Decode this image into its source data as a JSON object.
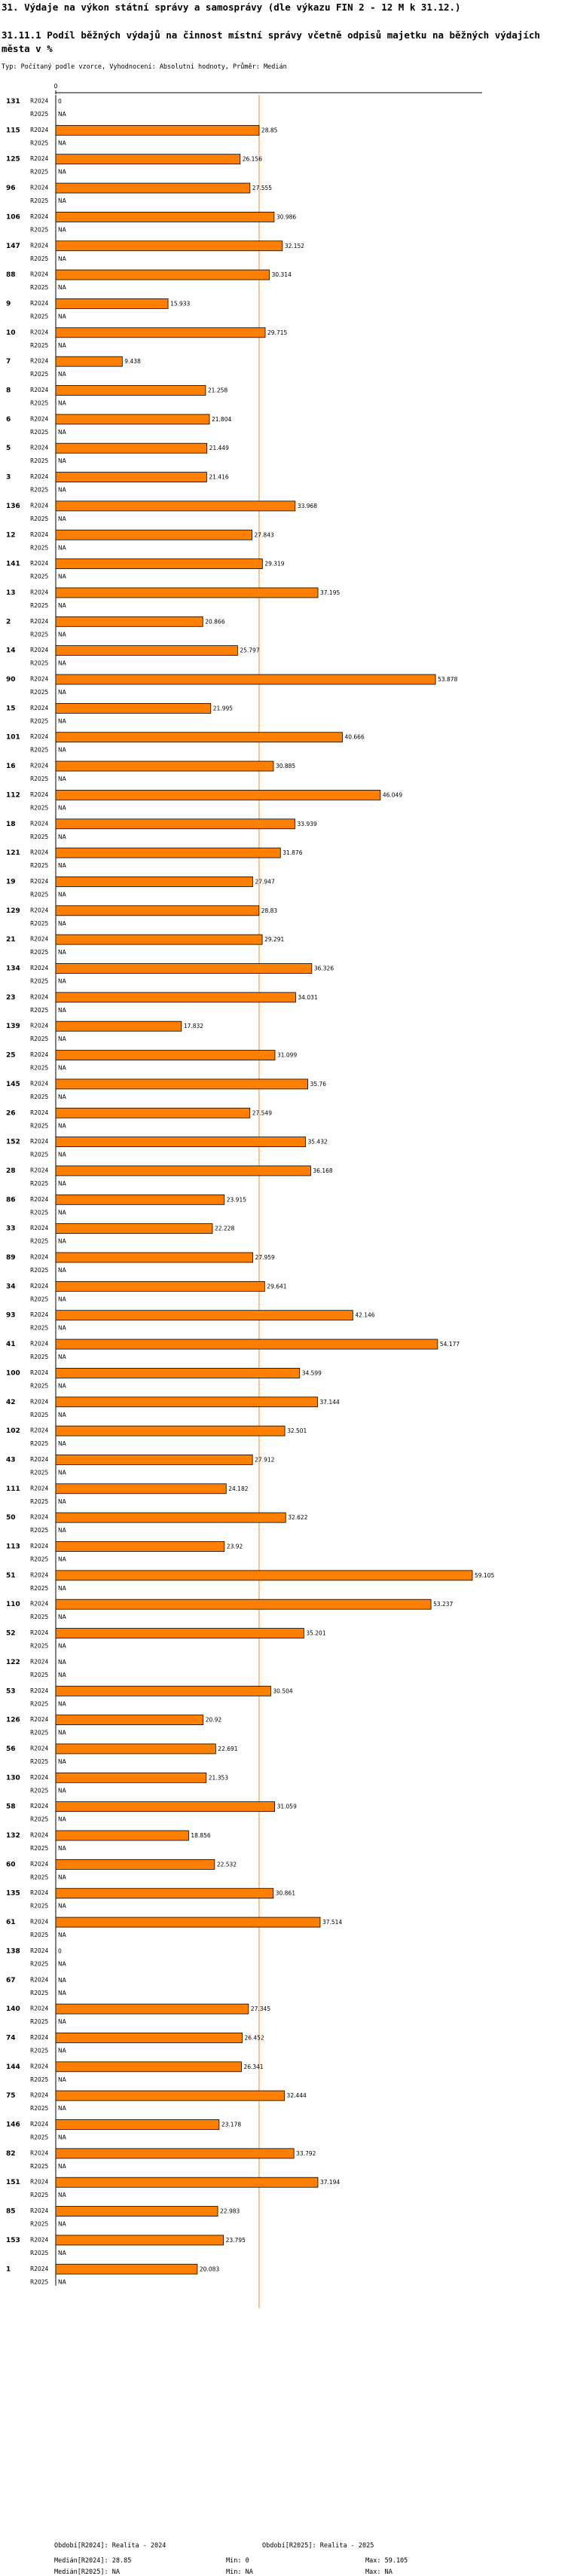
{
  "header": {
    "title": "31. Výdaje na výkon státní správy a samosprávy (dle výkazu FIN 2 - 12 M k 31.12.)",
    "subtitle": "31.11.1 Podíl běžných výdajů na činnost místní správy včetně odpisů majetku na běžných výdajích města v %",
    "settings": "Typ: Počítaný podle vzorce, Vyhodnocení: Absolutní hodnoty, Průměr: Medián"
  },
  "chart_data": {
    "type": "bar",
    "orientation": "horizontal",
    "series_names": [
      "R2024",
      "R2025"
    ],
    "axis_tick": "0",
    "xlim": [
      0,
      59.105
    ],
    "median_line": 28.85,
    "missing_label": "NA",
    "bar_color": "#ff8000",
    "median_color": "#ffb060",
    "rows": [
      {
        "id": "131",
        "r2024": 0,
        "l2024": "0"
      },
      {
        "id": "115",
        "r2024": 28.85,
        "l2024": "28.85"
      },
      {
        "id": "125",
        "r2024": 26.156,
        "l2024": "26.156"
      },
      {
        "id": "96",
        "r2024": 27.555,
        "l2024": "27.555"
      },
      {
        "id": "106",
        "r2024": 30.986,
        "l2024": "30.986"
      },
      {
        "id": "147",
        "r2024": 32.152,
        "l2024": "32.152"
      },
      {
        "id": "88",
        "r2024": 30.314,
        "l2024": "30.314"
      },
      {
        "id": "9",
        "r2024": 15.933,
        "l2024": "15.933"
      },
      {
        "id": "10",
        "r2024": 29.715,
        "l2024": "29.715"
      },
      {
        "id": "7",
        "r2024": 9.438,
        "l2024": "9.438"
      },
      {
        "id": "8",
        "r2024": 21.258,
        "l2024": "21.258"
      },
      {
        "id": "6",
        "r2024": 21.804,
        "l2024": "21.804"
      },
      {
        "id": "5",
        "r2024": 21.449,
        "l2024": "21.449"
      },
      {
        "id": "3",
        "r2024": 21.416,
        "l2024": "21.416"
      },
      {
        "id": "136",
        "r2024": 33.968,
        "l2024": "33.968"
      },
      {
        "id": "12",
        "r2024": 27.843,
        "l2024": "27.843"
      },
      {
        "id": "141",
        "r2024": 29.319,
        "l2024": "29.319"
      },
      {
        "id": "13",
        "r2024": 37.195,
        "l2024": "37.195"
      },
      {
        "id": "2",
        "r2024": 20.866,
        "l2024": "20.866"
      },
      {
        "id": "14",
        "r2024": 25.797,
        "l2024": "25.797"
      },
      {
        "id": "90",
        "r2024": 53.878,
        "l2024": "53.878"
      },
      {
        "id": "15",
        "r2024": 21.995,
        "l2024": "21.995"
      },
      {
        "id": "101",
        "r2024": 40.666,
        "l2024": "40.666"
      },
      {
        "id": "16",
        "r2024": 30.885,
        "l2024": "30.885"
      },
      {
        "id": "112",
        "r2024": 46.049,
        "l2024": "46.049"
      },
      {
        "id": "18",
        "r2024": 33.939,
        "l2024": "33.939"
      },
      {
        "id": "121",
        "r2024": 31.876,
        "l2024": "31.876"
      },
      {
        "id": "19",
        "r2024": 27.947,
        "l2024": "27.947"
      },
      {
        "id": "129",
        "r2024": 28.83,
        "l2024": "28.83"
      },
      {
        "id": "21",
        "r2024": 29.291,
        "l2024": "29.291"
      },
      {
        "id": "134",
        "r2024": 36.326,
        "l2024": "36.326"
      },
      {
        "id": "23",
        "r2024": 34.031,
        "l2024": "34.031"
      },
      {
        "id": "139",
        "r2024": 17.832,
        "l2024": "17.832"
      },
      {
        "id": "25",
        "r2024": 31.099,
        "l2024": "31.099"
      },
      {
        "id": "145",
        "r2024": 35.76,
        "l2024": "35.76"
      },
      {
        "id": "26",
        "r2024": 27.549,
        "l2024": "27.549"
      },
      {
        "id": "152",
        "r2024": 35.432,
        "l2024": "35.432"
      },
      {
        "id": "28",
        "r2024": 36.168,
        "l2024": "36.168"
      },
      {
        "id": "86",
        "r2024": 23.915,
        "l2024": "23.915"
      },
      {
        "id": "33",
        "r2024": 22.228,
        "l2024": "22.228"
      },
      {
        "id": "89",
        "r2024": 27.959,
        "l2024": "27.959"
      },
      {
        "id": "34",
        "r2024": 29.641,
        "l2024": "29.641"
      },
      {
        "id": "93",
        "r2024": 42.146,
        "l2024": "42.146"
      },
      {
        "id": "41",
        "r2024": 54.177,
        "l2024": "54.177"
      },
      {
        "id": "100",
        "r2024": 34.599,
        "l2024": "34.599"
      },
      {
        "id": "42",
        "r2024": 37.144,
        "l2024": "37.144"
      },
      {
        "id": "102",
        "r2024": 32.501,
        "l2024": "32.501"
      },
      {
        "id": "43",
        "r2024": 27.912,
        "l2024": "27.912"
      },
      {
        "id": "111",
        "r2024": 24.182,
        "l2024": "24.182"
      },
      {
        "id": "50",
        "r2024": 32.622,
        "l2024": "32.622"
      },
      {
        "id": "113",
        "r2024": 23.92,
        "l2024": "23.92"
      },
      {
        "id": "51",
        "r2024": 59.105,
        "l2024": "59.105"
      },
      {
        "id": "110",
        "r2024": 53.237,
        "l2024": "53.237"
      },
      {
        "id": "52",
        "r2024": 35.201,
        "l2024": "35.201"
      },
      {
        "id": "122",
        "r2024": null,
        "l2024": "NA"
      },
      {
        "id": "53",
        "r2024": 30.504,
        "l2024": "30.504"
      },
      {
        "id": "126",
        "r2024": 20.92,
        "l2024": "20.92"
      },
      {
        "id": "56",
        "r2024": 22.691,
        "l2024": "22.691"
      },
      {
        "id": "130",
        "r2024": 21.353,
        "l2024": "21.353"
      },
      {
        "id": "58",
        "r2024": 31.059,
        "l2024": "31.059"
      },
      {
        "id": "132",
        "r2024": 18.856,
        "l2024": "18.856"
      },
      {
        "id": "60",
        "r2024": 22.532,
        "l2024": "22.532"
      },
      {
        "id": "135",
        "r2024": 30.861,
        "l2024": "30.861"
      },
      {
        "id": "61",
        "r2024": 37.514,
        "l2024": "37.514"
      },
      {
        "id": "138",
        "r2024": 0,
        "l2024": "0"
      },
      {
        "id": "67",
        "r2024": null,
        "l2024": "NA"
      },
      {
        "id": "140",
        "r2024": 27.345,
        "l2024": "27.345"
      },
      {
        "id": "74",
        "r2024": 26.452,
        "l2024": "26.452"
      },
      {
        "id": "144",
        "r2024": 26.341,
        "l2024": "26.341"
      },
      {
        "id": "75",
        "r2024": 32.444,
        "l2024": "32.444"
      },
      {
        "id": "146",
        "r2024": 23.178,
        "l2024": "23.178"
      },
      {
        "id": "82",
        "r2024": 33.792,
        "l2024": "33.792"
      },
      {
        "id": "151",
        "r2024": 37.194,
        "l2024": "37.194"
      },
      {
        "id": "85",
        "r2024": 22.983,
        "l2024": "22.983"
      },
      {
        "id": "153",
        "r2024": 23.795,
        "l2024": "23.795"
      },
      {
        "id": "1",
        "r2024": 20.083,
        "l2024": "20.083"
      }
    ]
  },
  "legend": {
    "period1": "Období[R2024]: Realita - 2024",
    "period2": "Období[R2025]: Realita - 2025",
    "median1": "Medián[R2024]: 28.85",
    "median2": "Medián[R2025]: NA",
    "min1": "Min: 0",
    "min2": "Min: NA",
    "max1": "Max: 59.105",
    "max2": "Max: NA"
  }
}
